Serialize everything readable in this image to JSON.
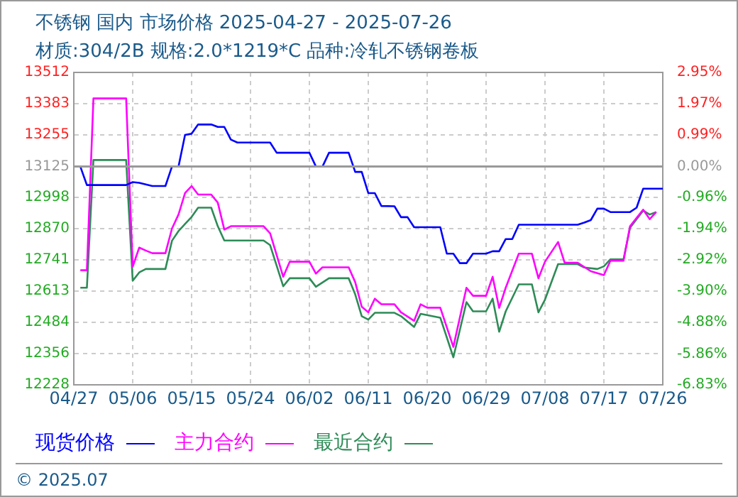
{
  "chart_data": {
    "type": "line",
    "title": "不锈钢 国内 市场价格 2025-04-27 - 2025-07-26",
    "subtitle": "材质:304/2B 规格:2.0*1219*C 品种:冷轧不锈钢卷板",
    "xlim": [
      "--04-27",
      "--07-26"
    ],
    "xticks": [
      {
        "value": "--04-27",
        "label": "04/27"
      },
      {
        "value": "--05-06",
        "label": "05/06"
      },
      {
        "value": "--05-15",
        "label": "05/15"
      },
      {
        "value": "--05-24",
        "label": "05/24"
      },
      {
        "value": "--06-02",
        "label": "06/02"
      },
      {
        "value": "--06-11",
        "label": "06/11"
      },
      {
        "value": "--06-20",
        "label": "06/20"
      },
      {
        "value": "--06-29",
        "label": "06/29"
      },
      {
        "value": "--07-08",
        "label": "07/08"
      },
      {
        "value": "--07-17",
        "label": "07/17"
      },
      {
        "value": "--07-26",
        "label": "07/26"
      }
    ],
    "ylim": [
      12228,
      13512
    ],
    "yticks": [
      12228,
      12356,
      12484,
      12613,
      12741,
      12870,
      12998,
      13125,
      13255,
      13383,
      13512
    ],
    "y2lim": [
      -6.83,
      2.95
    ],
    "y2ticks": [
      {
        "value": -6.83,
        "label": "-6.83%"
      },
      {
        "value": -5.86,
        "label": "-5.86%"
      },
      {
        "value": -4.88,
        "label": "-4.88%"
      },
      {
        "value": -3.9,
        "label": "-3.90%"
      },
      {
        "value": -2.92,
        "label": "-2.92%"
      },
      {
        "value": -1.94,
        "label": "-1.94%"
      },
      {
        "value": -0.96,
        "label": "-0.96%"
      },
      {
        "value": 0,
        "label": "0.00%"
      },
      {
        "value": 0.99,
        "label": "0.99%"
      },
      {
        "value": 1.97,
        "label": "1.97%"
      },
      {
        "value": 2.95,
        "label": "2.95%"
      }
    ],
    "grid": true,
    "legend": "bottom",
    "marker": "none",
    "line_style": "solid",
    "ref_lines": [
      {
        "axis": "y",
        "value": 13125,
        "color": "#999999"
      }
    ],
    "annotations": [
      "© 2025.07"
    ],
    "series": [
      {
        "name": "现货价格",
        "color": "#0000ff",
        "x": [
          "--04-27",
          "--04-28",
          "--04-29",
          "--05-05",
          "--05-06",
          "--05-07",
          "--05-09",
          "--05-11",
          "--05-12",
          "--05-13",
          "--05-14",
          "--05-15",
          "--05-16",
          "--05-18",
          "--05-19",
          "--05-20",
          "--05-21",
          "--05-22",
          "--05-27",
          "--05-28",
          "--06-02",
          "--06-03",
          "--06-04",
          "--06-05",
          "--06-08",
          "--06-09",
          "--06-10",
          "--06-11",
          "--06-12",
          "--06-13",
          "--06-15",
          "--06-16",
          "--06-17",
          "--06-18",
          "--06-22",
          "--06-23",
          "--06-24",
          "--06-25",
          "--06-26",
          "--06-27",
          "--06-29",
          "--06-30",
          "--07-01",
          "--07-02",
          "--07-03",
          "--07-04",
          "--07-13",
          "--07-14",
          "--07-15",
          "--07-16",
          "--07-17",
          "--07-18",
          "--07-21",
          "--07-22",
          "--07-23",
          "--07-26"
        ],
        "values": [
          13125,
          13125,
          13049,
          13049,
          13061,
          13058,
          13045,
          13045,
          13125,
          13125,
          13255,
          13260,
          13298,
          13298,
          13288,
          13288,
          13236,
          13224,
          13224,
          13182,
          13182,
          13125,
          13125,
          13182,
          13182,
          13103,
          13103,
          13016,
          13016,
          12963,
          12962,
          12917,
          12917,
          12876,
          12876,
          12767,
          12767,
          12728,
          12728,
          12767,
          12767,
          12777,
          12777,
          12827,
          12827,
          12886,
          12886,
          12895,
          12905,
          12952,
          12952,
          12938,
          12938,
          12956,
          13034,
          13034
        ]
      },
      {
        "name": "主力合约",
        "color": "#ff00ff",
        "x": [
          "--04-28",
          "--04-29",
          "--04-30",
          "--05-05",
          "--05-06",
          "--05-07",
          "--05-08",
          "--05-09",
          "--05-11",
          "--05-12",
          "--05-13",
          "--05-14",
          "--05-15",
          "--05-16",
          "--05-18",
          "--05-19",
          "--05-20",
          "--05-21",
          "--05-26",
          "--05-27",
          "--05-29",
          "--05-30",
          "--06-02",
          "--06-03",
          "--06-04",
          "--06-08",
          "--06-09",
          "--06-10",
          "--06-11",
          "--06-12",
          "--06-13",
          "--06-15",
          "--06-16",
          "--06-18",
          "--06-19",
          "--06-20",
          "--06-22",
          "--06-24",
          "--06-26",
          "--06-27",
          "--06-29",
          "--06-30",
          "--07-01",
          "--07-02",
          "--07-04",
          "--07-06",
          "--07-07",
          "--07-08",
          "--07-10",
          "--07-11",
          "--07-13",
          "--07-15",
          "--07-17",
          "--07-18",
          "--07-20",
          "--07-21",
          "--07-23",
          "--07-24",
          "--07-25"
        ],
        "values": [
          12699,
          12699,
          13405,
          13405,
          12714,
          12792,
          12780,
          12769,
          12769,
          12870,
          12928,
          13016,
          13045,
          13010,
          13010,
          12977,
          12866,
          12880,
          12880,
          12851,
          12672,
          12734,
          12734,
          12685,
          12711,
          12711,
          12650,
          12549,
          12526,
          12582,
          12559,
          12559,
          12526,
          12491,
          12559,
          12545,
          12545,
          12384,
          12627,
          12594,
          12594,
          12672,
          12544,
          12627,
          12767,
          12767,
          12666,
          12734,
          12815,
          12730,
          12730,
          12695,
          12679,
          12738,
          12738,
          12880,
          12948,
          12909,
          12938
        ]
      },
      {
        "name": "最近合约",
        "color": "#2e8b57",
        "x": [
          "--04-28",
          "--04-29",
          "--04-30",
          "--05-05",
          "--05-06",
          "--05-07",
          "--05-08",
          "--05-11",
          "--05-12",
          "--05-13",
          "--05-14",
          "--05-15",
          "--05-16",
          "--05-18",
          "--05-19",
          "--05-20",
          "--05-26",
          "--05-27",
          "--05-29",
          "--05-30",
          "--06-02",
          "--06-03",
          "--06-05",
          "--06-08",
          "--06-09",
          "--06-10",
          "--06-11",
          "--06-12",
          "--06-15",
          "--06-16",
          "--06-18",
          "--06-19",
          "--06-22",
          "--06-24",
          "--06-26",
          "--06-27",
          "--06-29",
          "--06-30",
          "--07-01",
          "--07-02",
          "--07-04",
          "--07-06",
          "--07-07",
          "--07-08",
          "--07-10",
          "--07-13",
          "--07-14",
          "--07-16",
          "--07-17",
          "--07-18",
          "--07-20",
          "--07-21",
          "--07-23",
          "--07-24",
          "--07-25"
        ],
        "values": [
          12627,
          12627,
          13152,
          13152,
          12656,
          12690,
          12704,
          12704,
          12820,
          12860,
          12889,
          12918,
          12956,
          12956,
          12880,
          12821,
          12821,
          12802,
          12633,
          12666,
          12666,
          12631,
          12666,
          12666,
          12600,
          12510,
          12496,
          12524,
          12524,
          12510,
          12466,
          12520,
          12504,
          12341,
          12568,
          12530,
          12530,
          12582,
          12446,
          12530,
          12641,
          12641,
          12526,
          12578,
          12724,
          12724,
          12710,
          12704,
          12715,
          12744,
          12744,
          12874,
          12944,
          12928,
          12938
        ]
      }
    ]
  }
}
